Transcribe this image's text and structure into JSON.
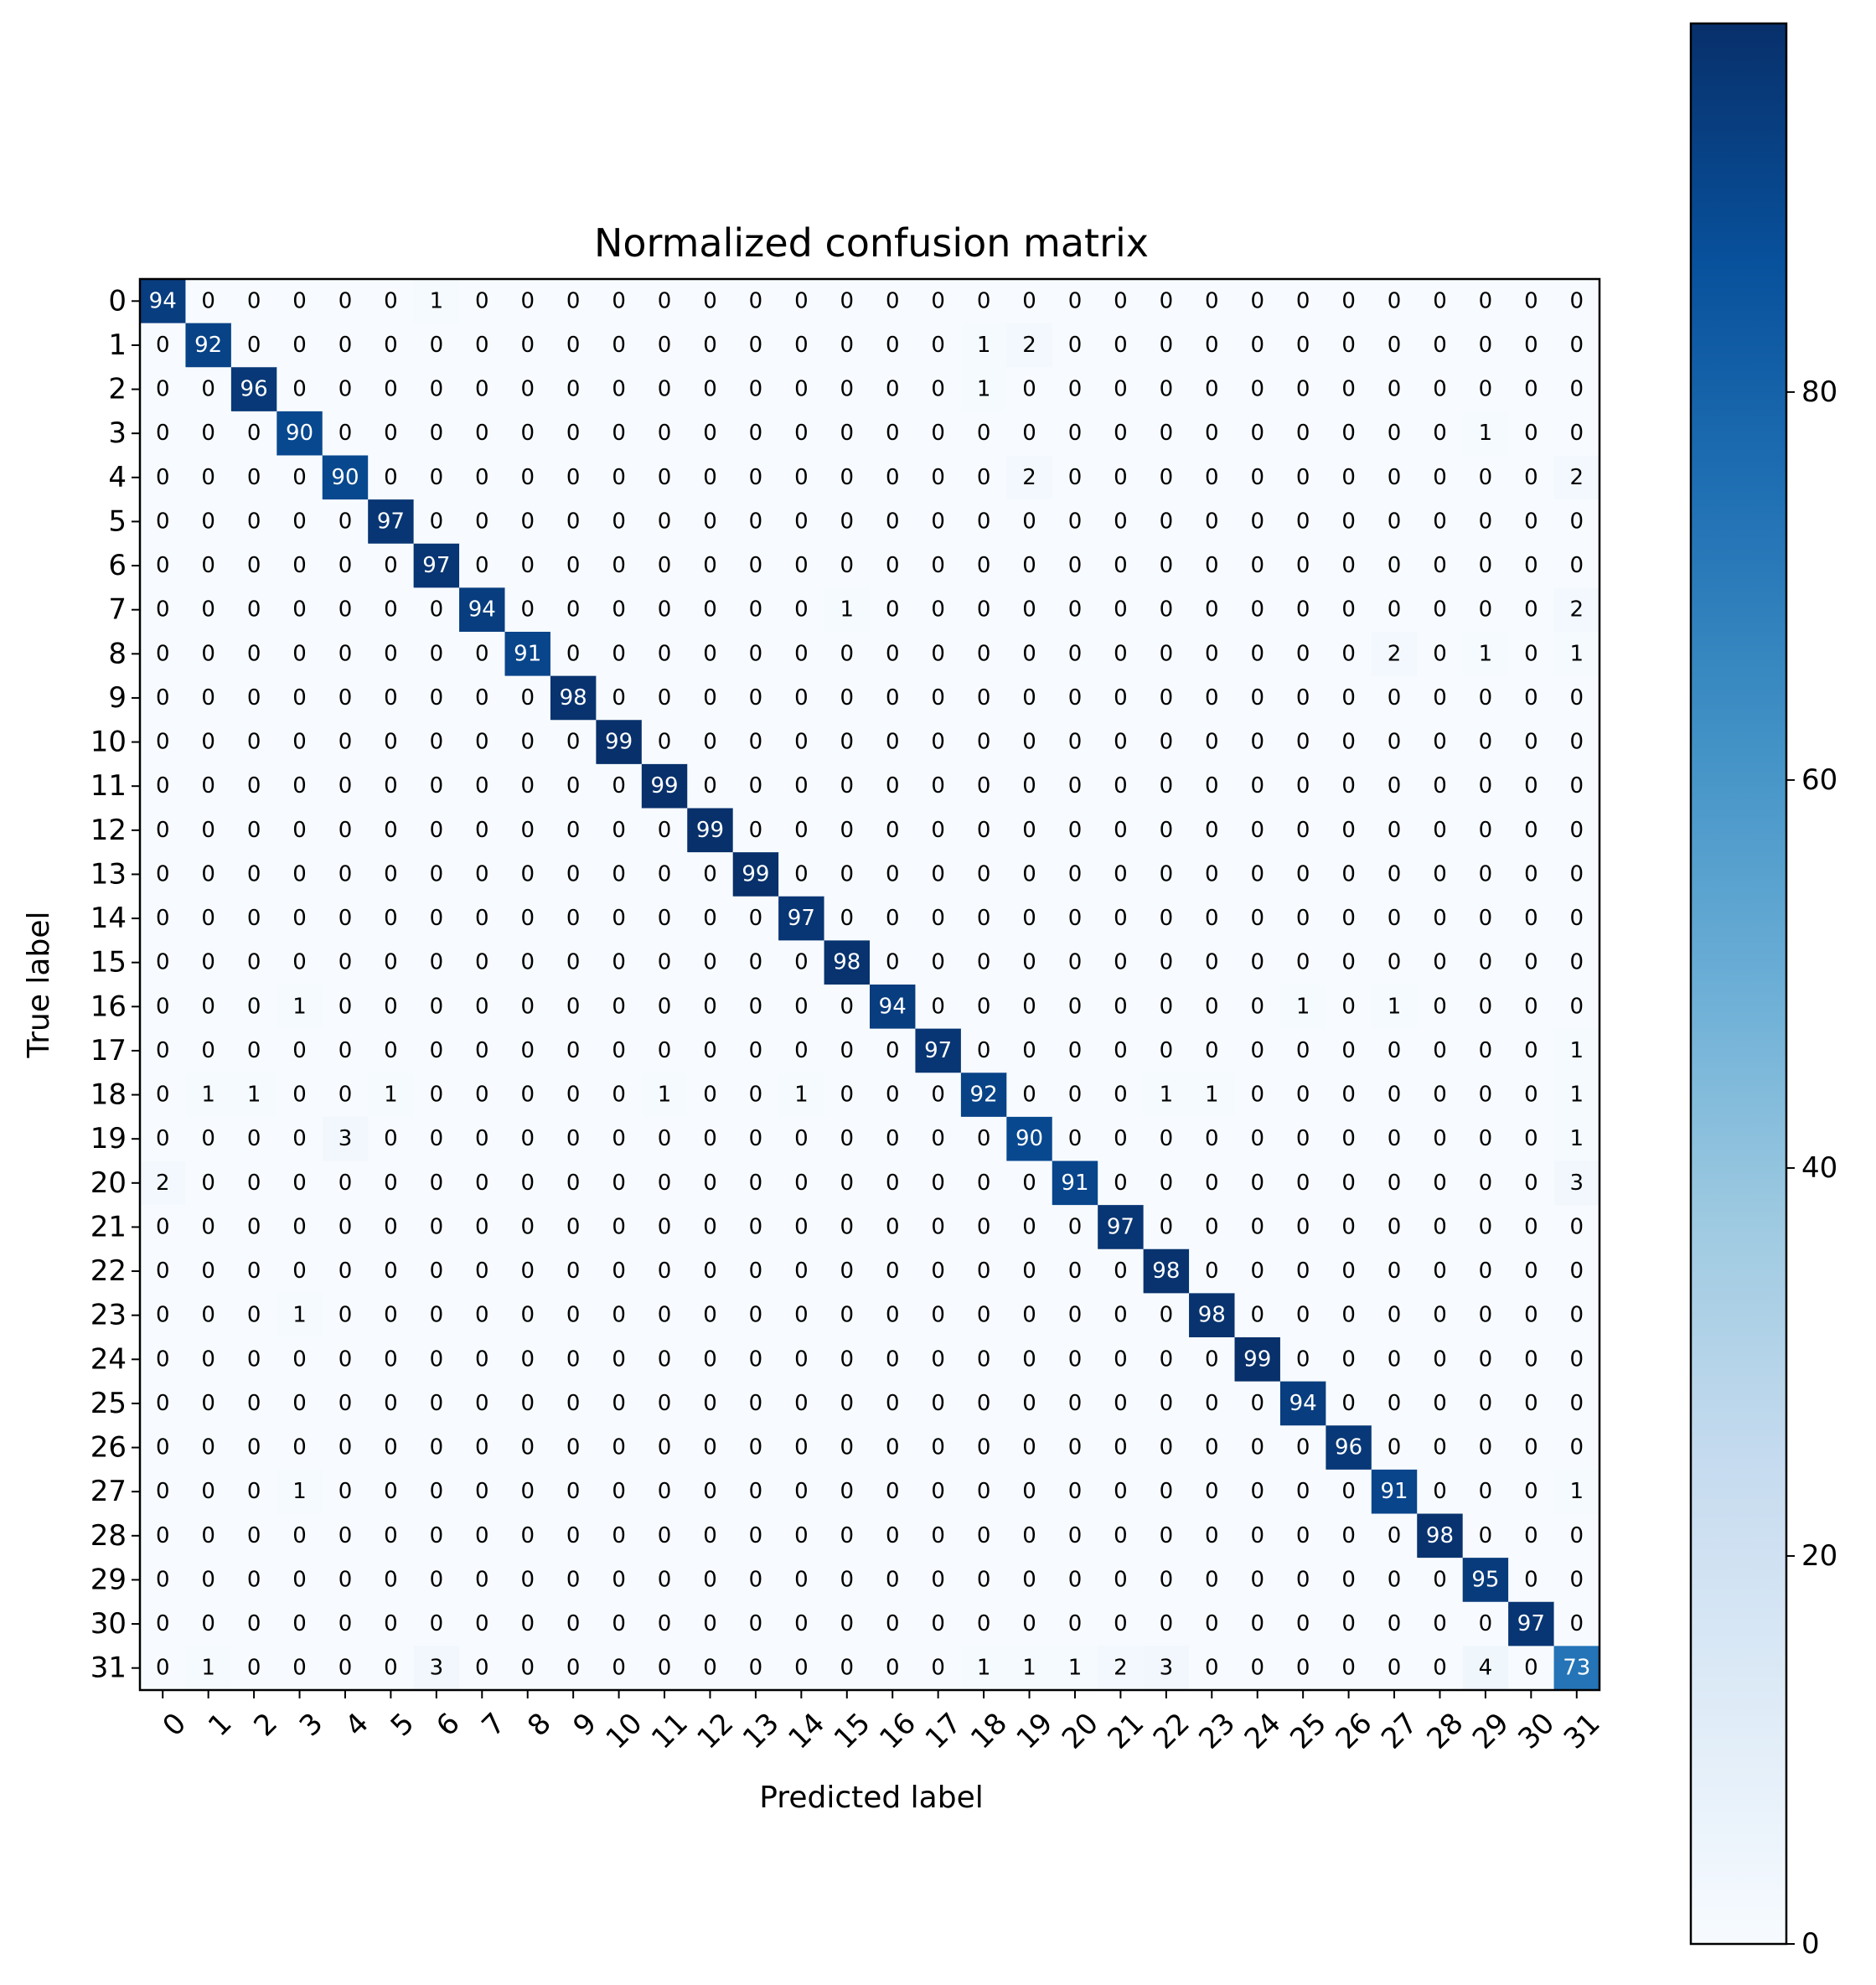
{
  "chart_data": {
    "type": "heatmap",
    "title": "Normalized confusion matrix",
    "xlabel": "Predicted label",
    "ylabel": "True label",
    "colormap": "Blues",
    "vmin": 0,
    "vmax": 99,
    "colorbar_ticks": [
      0,
      20,
      40,
      60,
      80
    ],
    "row_labels": [
      "0",
      "1",
      "2",
      "3",
      "4",
      "5",
      "6",
      "7",
      "8",
      "9",
      "10",
      "11",
      "12",
      "13",
      "14",
      "15",
      "16",
      "17",
      "18",
      "19",
      "20",
      "21",
      "22",
      "23",
      "24",
      "25",
      "26",
      "27",
      "28",
      "29",
      "30",
      "31"
    ],
    "col_labels": [
      "0",
      "1",
      "2",
      "3",
      "4",
      "5",
      "6",
      "7",
      "8",
      "9",
      "10",
      "11",
      "12",
      "13",
      "14",
      "15",
      "16",
      "17",
      "18",
      "19",
      "20",
      "21",
      "22",
      "23",
      "24",
      "25",
      "26",
      "27",
      "28",
      "29",
      "30",
      "31"
    ],
    "matrix": [
      [
        94,
        0,
        0,
        0,
        0,
        0,
        1,
        0,
        0,
        0,
        0,
        0,
        0,
        0,
        0,
        0,
        0,
        0,
        0,
        0,
        0,
        0,
        0,
        0,
        0,
        0,
        0,
        0,
        0,
        0,
        0,
        0
      ],
      [
        0,
        92,
        0,
        0,
        0,
        0,
        0,
        0,
        0,
        0,
        0,
        0,
        0,
        0,
        0,
        0,
        0,
        0,
        1,
        2,
        0,
        0,
        0,
        0,
        0,
        0,
        0,
        0,
        0,
        0,
        0,
        0
      ],
      [
        0,
        0,
        96,
        0,
        0,
        0,
        0,
        0,
        0,
        0,
        0,
        0,
        0,
        0,
        0,
        0,
        0,
        0,
        1,
        0,
        0,
        0,
        0,
        0,
        0,
        0,
        0,
        0,
        0,
        0,
        0,
        0
      ],
      [
        0,
        0,
        0,
        90,
        0,
        0,
        0,
        0,
        0,
        0,
        0,
        0,
        0,
        0,
        0,
        0,
        0,
        0,
        0,
        0,
        0,
        0,
        0,
        0,
        0,
        0,
        0,
        0,
        0,
        1,
        0,
        0
      ],
      [
        0,
        0,
        0,
        0,
        90,
        0,
        0,
        0,
        0,
        0,
        0,
        0,
        0,
        0,
        0,
        0,
        0,
        0,
        0,
        2,
        0,
        0,
        0,
        0,
        0,
        0,
        0,
        0,
        0,
        0,
        0,
        2
      ],
      [
        0,
        0,
        0,
        0,
        0,
        97,
        0,
        0,
        0,
        0,
        0,
        0,
        0,
        0,
        0,
        0,
        0,
        0,
        0,
        0,
        0,
        0,
        0,
        0,
        0,
        0,
        0,
        0,
        0,
        0,
        0,
        0
      ],
      [
        0,
        0,
        0,
        0,
        0,
        0,
        97,
        0,
        0,
        0,
        0,
        0,
        0,
        0,
        0,
        0,
        0,
        0,
        0,
        0,
        0,
        0,
        0,
        0,
        0,
        0,
        0,
        0,
        0,
        0,
        0,
        0
      ],
      [
        0,
        0,
        0,
        0,
        0,
        0,
        0,
        94,
        0,
        0,
        0,
        0,
        0,
        0,
        0,
        1,
        0,
        0,
        0,
        0,
        0,
        0,
        0,
        0,
        0,
        0,
        0,
        0,
        0,
        0,
        0,
        2
      ],
      [
        0,
        0,
        0,
        0,
        0,
        0,
        0,
        0,
        91,
        0,
        0,
        0,
        0,
        0,
        0,
        0,
        0,
        0,
        0,
        0,
        0,
        0,
        0,
        0,
        0,
        0,
        0,
        2,
        0,
        1,
        0,
        1
      ],
      [
        0,
        0,
        0,
        0,
        0,
        0,
        0,
        0,
        0,
        98,
        0,
        0,
        0,
        0,
        0,
        0,
        0,
        0,
        0,
        0,
        0,
        0,
        0,
        0,
        0,
        0,
        0,
        0,
        0,
        0,
        0,
        0
      ],
      [
        0,
        0,
        0,
        0,
        0,
        0,
        0,
        0,
        0,
        0,
        99,
        0,
        0,
        0,
        0,
        0,
        0,
        0,
        0,
        0,
        0,
        0,
        0,
        0,
        0,
        0,
        0,
        0,
        0,
        0,
        0,
        0
      ],
      [
        0,
        0,
        0,
        0,
        0,
        0,
        0,
        0,
        0,
        0,
        0,
        99,
        0,
        0,
        0,
        0,
        0,
        0,
        0,
        0,
        0,
        0,
        0,
        0,
        0,
        0,
        0,
        0,
        0,
        0,
        0,
        0
      ],
      [
        0,
        0,
        0,
        0,
        0,
        0,
        0,
        0,
        0,
        0,
        0,
        0,
        99,
        0,
        0,
        0,
        0,
        0,
        0,
        0,
        0,
        0,
        0,
        0,
        0,
        0,
        0,
        0,
        0,
        0,
        0,
        0
      ],
      [
        0,
        0,
        0,
        0,
        0,
        0,
        0,
        0,
        0,
        0,
        0,
        0,
        0,
        99,
        0,
        0,
        0,
        0,
        0,
        0,
        0,
        0,
        0,
        0,
        0,
        0,
        0,
        0,
        0,
        0,
        0,
        0
      ],
      [
        0,
        0,
        0,
        0,
        0,
        0,
        0,
        0,
        0,
        0,
        0,
        0,
        0,
        0,
        97,
        0,
        0,
        0,
        0,
        0,
        0,
        0,
        0,
        0,
        0,
        0,
        0,
        0,
        0,
        0,
        0,
        0
      ],
      [
        0,
        0,
        0,
        0,
        0,
        0,
        0,
        0,
        0,
        0,
        0,
        0,
        0,
        0,
        0,
        98,
        0,
        0,
        0,
        0,
        0,
        0,
        0,
        0,
        0,
        0,
        0,
        0,
        0,
        0,
        0,
        0
      ],
      [
        0,
        0,
        0,
        1,
        0,
        0,
        0,
        0,
        0,
        0,
        0,
        0,
        0,
        0,
        0,
        0,
        94,
        0,
        0,
        0,
        0,
        0,
        0,
        0,
        0,
        1,
        0,
        1,
        0,
        0,
        0,
        0
      ],
      [
        0,
        0,
        0,
        0,
        0,
        0,
        0,
        0,
        0,
        0,
        0,
        0,
        0,
        0,
        0,
        0,
        0,
        97,
        0,
        0,
        0,
        0,
        0,
        0,
        0,
        0,
        0,
        0,
        0,
        0,
        0,
        1
      ],
      [
        0,
        1,
        1,
        0,
        0,
        1,
        0,
        0,
        0,
        0,
        0,
        1,
        0,
        0,
        1,
        0,
        0,
        0,
        92,
        0,
        0,
        0,
        1,
        1,
        0,
        0,
        0,
        0,
        0,
        0,
        0,
        1
      ],
      [
        0,
        0,
        0,
        0,
        3,
        0,
        0,
        0,
        0,
        0,
        0,
        0,
        0,
        0,
        0,
        0,
        0,
        0,
        0,
        90,
        0,
        0,
        0,
        0,
        0,
        0,
        0,
        0,
        0,
        0,
        0,
        1
      ],
      [
        2,
        0,
        0,
        0,
        0,
        0,
        0,
        0,
        0,
        0,
        0,
        0,
        0,
        0,
        0,
        0,
        0,
        0,
        0,
        0,
        91,
        0,
        0,
        0,
        0,
        0,
        0,
        0,
        0,
        0,
        0,
        3
      ],
      [
        0,
        0,
        0,
        0,
        0,
        0,
        0,
        0,
        0,
        0,
        0,
        0,
        0,
        0,
        0,
        0,
        0,
        0,
        0,
        0,
        0,
        97,
        0,
        0,
        0,
        0,
        0,
        0,
        0,
        0,
        0,
        0
      ],
      [
        0,
        0,
        0,
        0,
        0,
        0,
        0,
        0,
        0,
        0,
        0,
        0,
        0,
        0,
        0,
        0,
        0,
        0,
        0,
        0,
        0,
        0,
        98,
        0,
        0,
        0,
        0,
        0,
        0,
        0,
        0,
        0
      ],
      [
        0,
        0,
        0,
        1,
        0,
        0,
        0,
        0,
        0,
        0,
        0,
        0,
        0,
        0,
        0,
        0,
        0,
        0,
        0,
        0,
        0,
        0,
        0,
        98,
        0,
        0,
        0,
        0,
        0,
        0,
        0,
        0
      ],
      [
        0,
        0,
        0,
        0,
        0,
        0,
        0,
        0,
        0,
        0,
        0,
        0,
        0,
        0,
        0,
        0,
        0,
        0,
        0,
        0,
        0,
        0,
        0,
        0,
        99,
        0,
        0,
        0,
        0,
        0,
        0,
        0
      ],
      [
        0,
        0,
        0,
        0,
        0,
        0,
        0,
        0,
        0,
        0,
        0,
        0,
        0,
        0,
        0,
        0,
        0,
        0,
        0,
        0,
        0,
        0,
        0,
        0,
        0,
        94,
        0,
        0,
        0,
        0,
        0,
        0
      ],
      [
        0,
        0,
        0,
        0,
        0,
        0,
        0,
        0,
        0,
        0,
        0,
        0,
        0,
        0,
        0,
        0,
        0,
        0,
        0,
        0,
        0,
        0,
        0,
        0,
        0,
        0,
        96,
        0,
        0,
        0,
        0,
        0
      ],
      [
        0,
        0,
        0,
        1,
        0,
        0,
        0,
        0,
        0,
        0,
        0,
        0,
        0,
        0,
        0,
        0,
        0,
        0,
        0,
        0,
        0,
        0,
        0,
        0,
        0,
        0,
        0,
        91,
        0,
        0,
        0,
        1
      ],
      [
        0,
        0,
        0,
        0,
        0,
        0,
        0,
        0,
        0,
        0,
        0,
        0,
        0,
        0,
        0,
        0,
        0,
        0,
        0,
        0,
        0,
        0,
        0,
        0,
        0,
        0,
        0,
        0,
        98,
        0,
        0,
        0
      ],
      [
        0,
        0,
        0,
        0,
        0,
        0,
        0,
        0,
        0,
        0,
        0,
        0,
        0,
        0,
        0,
        0,
        0,
        0,
        0,
        0,
        0,
        0,
        0,
        0,
        0,
        0,
        0,
        0,
        0,
        95,
        0,
        0
      ],
      [
        0,
        0,
        0,
        0,
        0,
        0,
        0,
        0,
        0,
        0,
        0,
        0,
        0,
        0,
        0,
        0,
        0,
        0,
        0,
        0,
        0,
        0,
        0,
        0,
        0,
        0,
        0,
        0,
        0,
        0,
        97,
        0
      ],
      [
        0,
        1,
        0,
        0,
        0,
        0,
        3,
        0,
        0,
        0,
        0,
        0,
        0,
        0,
        0,
        0,
        0,
        0,
        1,
        1,
        1,
        2,
        3,
        0,
        0,
        0,
        0,
        0,
        0,
        4,
        0,
        73
      ]
    ]
  }
}
